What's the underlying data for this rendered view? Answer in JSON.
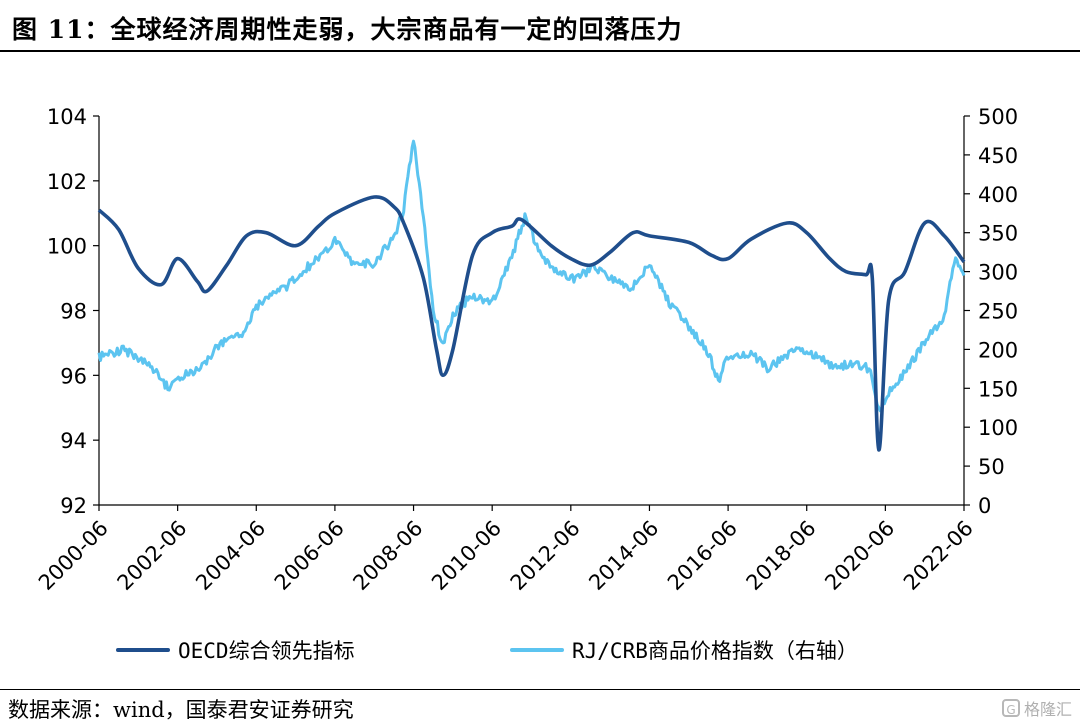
{
  "title": "图 11：全球经济周期性走弱，大宗商品有一定的回落压力",
  "source": "数据来源：wind，国泰君安证券研究",
  "watermark": "格隆汇",
  "chart_data": {
    "type": "line",
    "x_ticks": [
      "2000-06",
      "2002-06",
      "2004-06",
      "2006-06",
      "2008-06",
      "2010-06",
      "2012-06",
      "2014-06",
      "2016-06",
      "2018-06",
      "2020-06",
      "2022-06"
    ],
    "y_left": {
      "ticks": [
        92,
        94,
        96,
        98,
        100,
        102,
        104
      ],
      "range": [
        92,
        104
      ]
    },
    "y_right": {
      "ticks": [
        0,
        50,
        100,
        150,
        200,
        250,
        300,
        350,
        400,
        450,
        500
      ],
      "range": [
        0,
        500
      ]
    },
    "grid": false,
    "legend_position": "bottom",
    "series": [
      {
        "name": "OECD综合领先指标",
        "axis": "left",
        "color": "#1f4e8c",
        "points": [
          [
            "2000-06",
            101.1
          ],
          [
            "2000-12",
            100.5
          ],
          [
            "2001-06",
            99.3
          ],
          [
            "2002-01",
            98.8
          ],
          [
            "2002-06",
            99.6
          ],
          [
            "2002-12",
            98.9
          ],
          [
            "2003-03",
            98.6
          ],
          [
            "2003-09",
            99.4
          ],
          [
            "2004-03",
            100.3
          ],
          [
            "2004-09",
            100.4
          ],
          [
            "2005-06",
            100.0
          ],
          [
            "2006-01",
            100.6
          ],
          [
            "2006-06",
            101.0
          ],
          [
            "2007-06",
            101.5
          ],
          [
            "2007-12",
            101.2
          ],
          [
            "2008-03",
            100.7
          ],
          [
            "2008-09",
            99.0
          ],
          [
            "2009-01",
            96.8
          ],
          [
            "2009-03",
            96.0
          ],
          [
            "2009-06",
            96.8
          ],
          [
            "2009-12",
            99.7
          ],
          [
            "2010-06",
            100.4
          ],
          [
            "2010-12",
            100.6
          ],
          [
            "2011-03",
            100.8
          ],
          [
            "2011-12",
            100.0
          ],
          [
            "2012-06",
            99.6
          ],
          [
            "2012-12",
            99.4
          ],
          [
            "2013-06",
            99.8
          ],
          [
            "2014-01",
            100.4
          ],
          [
            "2014-06",
            100.3
          ],
          [
            "2015-06",
            100.1
          ],
          [
            "2016-01",
            99.7
          ],
          [
            "2016-06",
            99.6
          ],
          [
            "2017-01",
            100.2
          ],
          [
            "2017-12",
            100.7
          ],
          [
            "2018-06",
            100.4
          ],
          [
            "2019-01",
            99.6
          ],
          [
            "2019-06",
            99.2
          ],
          [
            "2019-12",
            99.1
          ],
          [
            "2020-02",
            99.0
          ],
          [
            "2020-04",
            93.7
          ],
          [
            "2020-07",
            98.3
          ],
          [
            "2020-12",
            99.2
          ],
          [
            "2021-06",
            100.7
          ],
          [
            "2021-12",
            100.3
          ],
          [
            "2022-06",
            99.5
          ]
        ]
      },
      {
        "name": "RJ/CRB商品价格指数（右轴）",
        "axis": "right",
        "color": "#5cc4f0",
        "points": [
          [
            "2000-06",
            190
          ],
          [
            "2001-01",
            200
          ],
          [
            "2001-06",
            190
          ],
          [
            "2001-12",
            170
          ],
          [
            "2002-03",
            150
          ],
          [
            "2002-09",
            170
          ],
          [
            "2003-01",
            175
          ],
          [
            "2003-06",
            205
          ],
          [
            "2004-03",
            225
          ],
          [
            "2004-06",
            255
          ],
          [
            "2005-01",
            275
          ],
          [
            "2005-06",
            290
          ],
          [
            "2006-01",
            320
          ],
          [
            "2006-06",
            340
          ],
          [
            "2006-12",
            310
          ],
          [
            "2007-06",
            310
          ],
          [
            "2007-12",
            345
          ],
          [
            "2008-03",
            380
          ],
          [
            "2008-06",
            470
          ],
          [
            "2008-09",
            370
          ],
          [
            "2008-12",
            250
          ],
          [
            "2009-03",
            205
          ],
          [
            "2009-06",
            245
          ],
          [
            "2009-12",
            270
          ],
          [
            "2010-06",
            260
          ],
          [
            "2010-12",
            320
          ],
          [
            "2011-04",
            370
          ],
          [
            "2011-09",
            320
          ],
          [
            "2012-01",
            300
          ],
          [
            "2012-06",
            290
          ],
          [
            "2013-01",
            305
          ],
          [
            "2013-06",
            290
          ],
          [
            "2014-01",
            280
          ],
          [
            "2014-06",
            310
          ],
          [
            "2014-12",
            260
          ],
          [
            "2015-06",
            230
          ],
          [
            "2015-12",
            195
          ],
          [
            "2016-03",
            160
          ],
          [
            "2016-06",
            190
          ],
          [
            "2017-01",
            195
          ],
          [
            "2017-06",
            175
          ],
          [
            "2018-01",
            195
          ],
          [
            "2018-06",
            200
          ],
          [
            "2019-01",
            180
          ],
          [
            "2019-12",
            180
          ],
          [
            "2020-02",
            165
          ],
          [
            "2020-04",
            120
          ],
          [
            "2020-07",
            145
          ],
          [
            "2020-12",
            170
          ],
          [
            "2021-06",
            210
          ],
          [
            "2021-12",
            240
          ],
          [
            "2022-03",
            315
          ],
          [
            "2022-06",
            295
          ]
        ]
      }
    ]
  }
}
